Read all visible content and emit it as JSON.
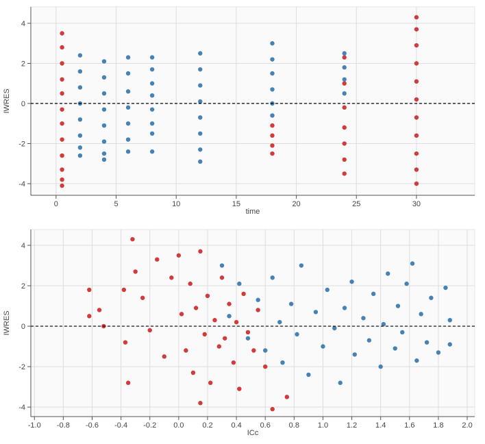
{
  "chart_data": [
    {
      "type": "scatter",
      "x_label": "time",
      "y_label": "IWRES",
      "xlim": [
        -2.1,
        34.85
      ],
      "ylim": [
        -4.58,
        4.82
      ],
      "xticks": [
        0,
        5,
        10,
        15,
        20,
        25,
        30
      ],
      "yticks": [
        -4,
        -2,
        0,
        2,
        4
      ],
      "hline": 0,
      "grid": true,
      "series": [
        {
          "color": "#d13b3b",
          "x": [
            0.5,
            0.5,
            0.5,
            0.5,
            0.5,
            0.5,
            0.5,
            0.5,
            0.5,
            0.5,
            0.5,
            0.5,
            18,
            18,
            18,
            18,
            24,
            24,
            24,
            24,
            24,
            24,
            24,
            30,
            30,
            30,
            30,
            30,
            30,
            30,
            30,
            30,
            30,
            30
          ],
          "values": [
            3.5,
            2.8,
            2.0,
            1.2,
            0.5,
            -0.3,
            -1.0,
            -1.8,
            -2.6,
            -3.3,
            -3.8,
            -4.1,
            -1.1,
            -1.6,
            -2.1,
            -2.5,
            2.3,
            1.0,
            -0.2,
            -1.2,
            -2.0,
            -2.8,
            -3.5,
            4.3,
            3.7,
            2.9,
            2.0,
            1.1,
            0.2,
            -0.7,
            -1.6,
            -2.5,
            -3.3,
            -4.0
          ]
        },
        {
          "color": "#4682b4",
          "x": [
            2,
            2,
            2,
            2,
            2,
            2,
            2,
            2,
            4,
            4,
            4,
            4,
            4,
            4,
            4,
            4,
            6,
            6,
            6,
            6,
            6,
            6,
            6,
            8,
            8,
            8,
            8,
            8,
            8,
            8,
            8,
            12,
            12,
            12,
            12,
            12,
            12,
            12,
            12,
            18,
            18,
            18,
            18,
            18,
            18,
            24,
            24,
            24,
            24
          ],
          "values": [
            2.4,
            1.6,
            0.8,
            0,
            -0.8,
            -1.6,
            -2.2,
            -2.6,
            2.1,
            1.3,
            0.5,
            -0.3,
            -1.1,
            -1.9,
            -2.5,
            -2.8,
            2.3,
            1.5,
            0.6,
            -0.2,
            -1.0,
            -1.8,
            -2.4,
            2.3,
            1.7,
            1.0,
            0.4,
            -0.3,
            -1.0,
            -1.5,
            -2.4,
            2.5,
            1.7,
            0.9,
            0.1,
            -0.7,
            -1.5,
            -2.3,
            -2.9,
            3.0,
            2.2,
            1.5,
            0.7,
            0,
            -0.6,
            2.5,
            1.8,
            1.2,
            0.5
          ]
        }
      ]
    },
    {
      "type": "scatter",
      "x_label": "ICc",
      "y_label": "IWRES",
      "xlim": [
        -1.025,
        2.052
      ],
      "ylim": [
        -4.47,
        4.78
      ],
      "xticks": [
        {
          "value": -1,
          "label": "-1.0"
        },
        -0.8,
        -0.6,
        -0.4,
        -0.2,
        {
          "value": 0,
          "label": "0.0"
        },
        0.2,
        0.4,
        0.6,
        0.8,
        {
          "value": 1,
          "label": "1.0"
        },
        1.2,
        1.4,
        1.6,
        1.8,
        {
          "value": 2,
          "label": "2.0"
        }
      ],
      "yticks": [
        -4,
        -2,
        0,
        2,
        4
      ],
      "hline": 0,
      "grid": true,
      "series": [
        {
          "color": "#d13b3b",
          "x": [
            -0.62,
            -0.62,
            -0.55,
            -0.52,
            -0.38,
            -0.37,
            -0.35,
            -0.32,
            -0.3,
            -0.25,
            -0.2,
            -0.15,
            -0.1,
            -0.05,
            0,
            0.02,
            0.05,
            0.08,
            0.1,
            0.12,
            0.15,
            0.15,
            0.18,
            0.2,
            0.22,
            0.25,
            0.28,
            0.3,
            0.32,
            0.35,
            0.38,
            0.4,
            0.42,
            0.45,
            0.48,
            0.52,
            0.55,
            0.6,
            0.65,
            0.75
          ],
          "values": [
            1.8,
            0.5,
            0.8,
            0,
            1.8,
            -0.8,
            -2.8,
            4.3,
            2.7,
            1.4,
            -0.2,
            3.3,
            -1.5,
            2.4,
            3.5,
            0.6,
            -1.2,
            2.1,
            -2.3,
            0.9,
            -3.8,
            3.7,
            -0.4,
            1.5,
            -2.8,
            0.3,
            -1.0,
            2.4,
            -0.6,
            1.1,
            -1.8,
            0.2,
            -3.1,
            1.6,
            -0.3,
            -1.2,
            0.8,
            -2.0,
            -4.1,
            -3.5
          ]
        },
        {
          "color": "#4682b4",
          "x": [
            0.3,
            0.35,
            0.42,
            0.48,
            0.55,
            0.6,
            0.65,
            0.7,
            0.72,
            0.78,
            0.82,
            0.85,
            0.9,
            0.95,
            1.0,
            1.03,
            1.08,
            1.12,
            1.15,
            1.2,
            1.22,
            1.28,
            1.32,
            1.35,
            1.4,
            1.42,
            1.45,
            1.5,
            1.52,
            1.55,
            1.58,
            1.62,
            1.65,
            1.68,
            1.72,
            1.75,
            1.8,
            1.85,
            1.88,
            1.88
          ],
          "values": [
            3.0,
            0.5,
            2.1,
            -0.6,
            1.3,
            -1.2,
            2.4,
            0.2,
            -1.8,
            1.1,
            -0.4,
            3.0,
            -2.4,
            0.7,
            -1.0,
            1.8,
            -0.1,
            -2.8,
            0.9,
            2.2,
            -1.4,
            0.4,
            -0.7,
            1.6,
            -2.0,
            0.1,
            2.6,
            -1.1,
            1.0,
            -0.3,
            2.1,
            3.1,
            -1.7,
            0.6,
            -0.8,
            1.4,
            -1.3,
            1.9,
            0.3,
            -0.9
          ]
        }
      ]
    }
  ]
}
